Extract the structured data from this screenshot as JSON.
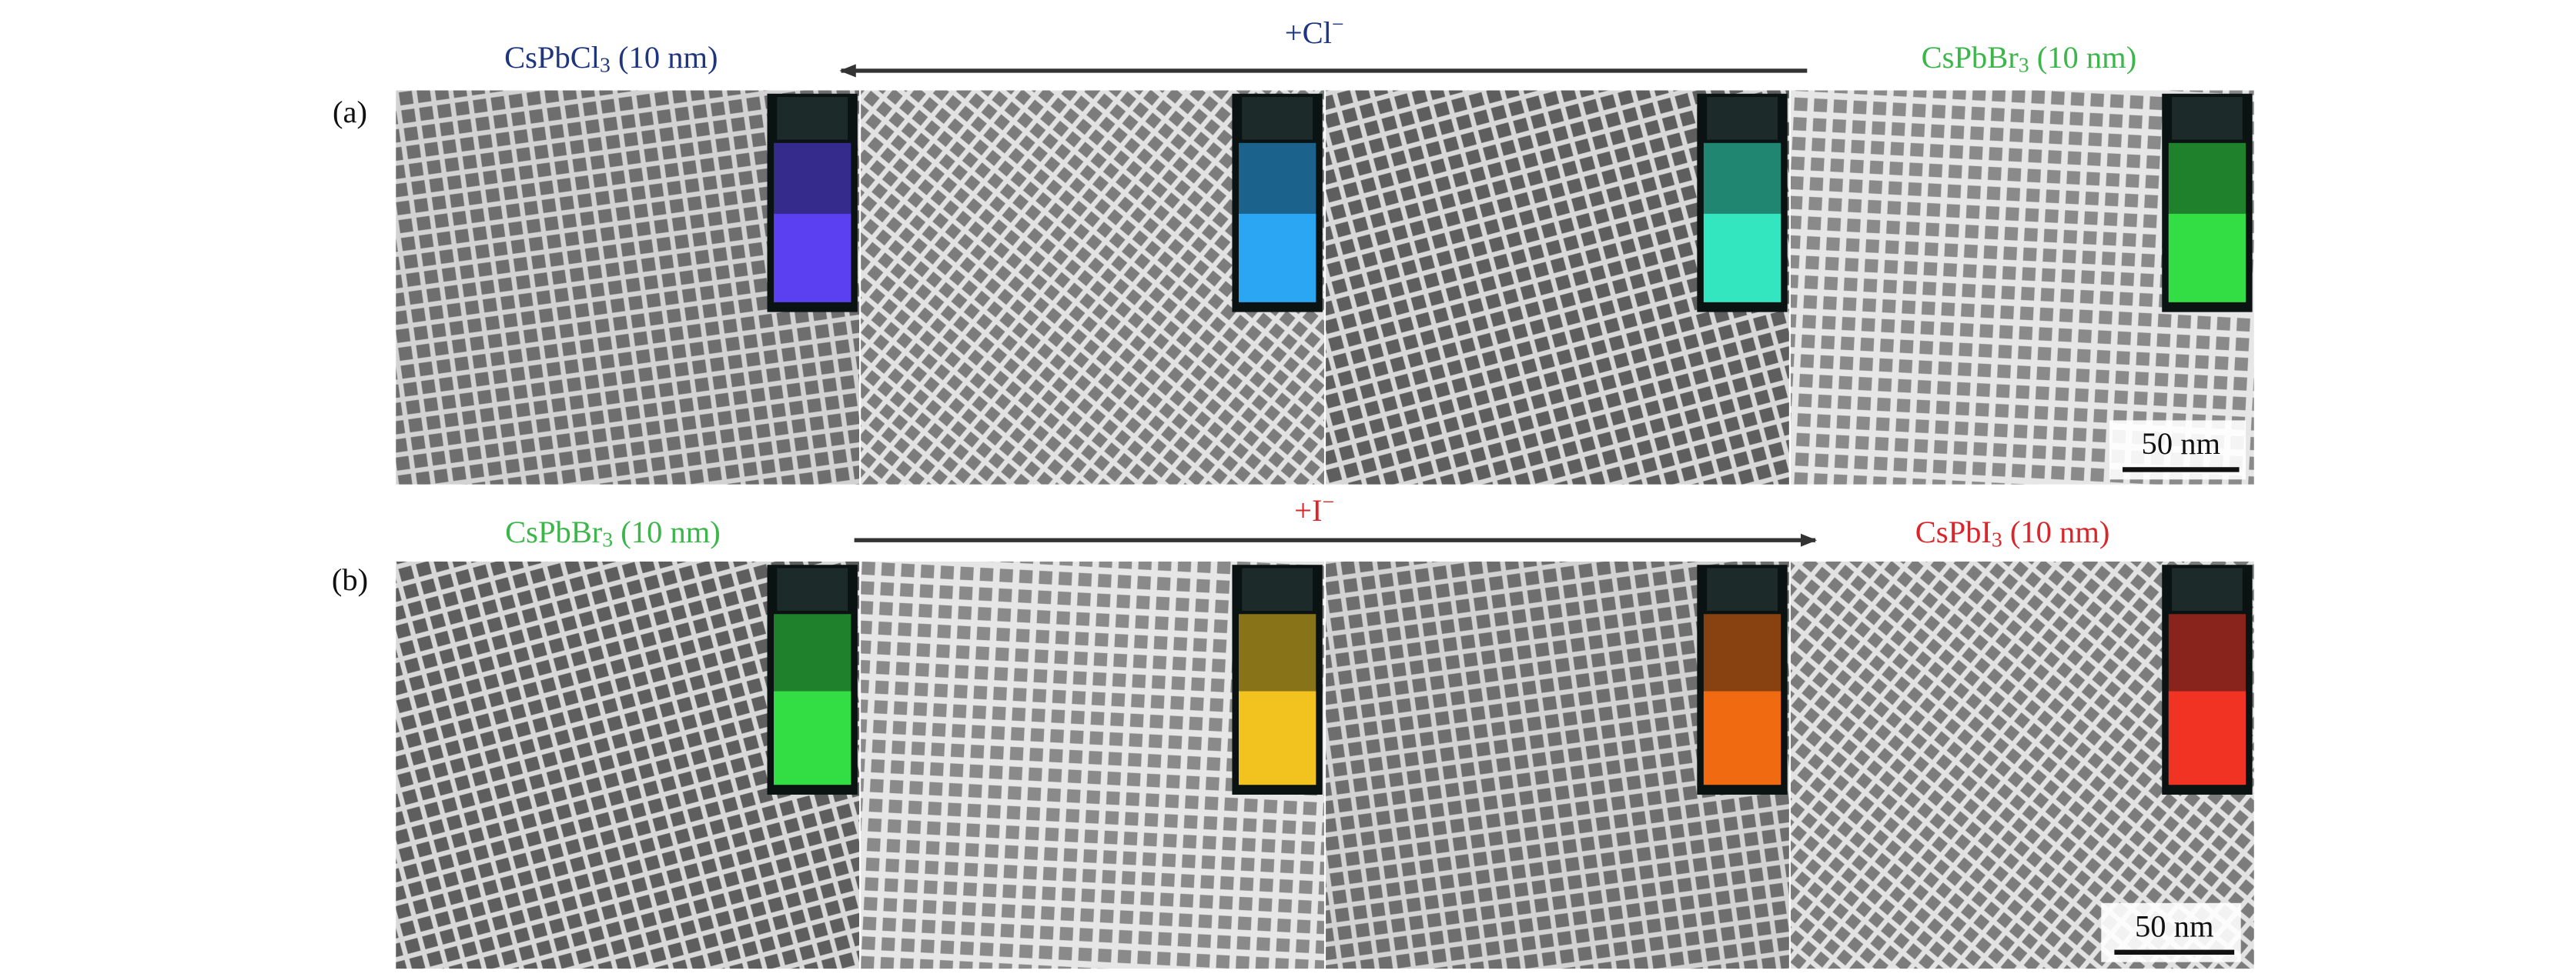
{
  "panels": [
    {
      "label": "(a)",
      "start": {
        "formula": "CsPbCl",
        "sub": "3",
        "size": " (10 nm)"
      },
      "ion": {
        "text": "+Cl",
        "sup": "−"
      },
      "end": {
        "formula": "CsPbBr",
        "sub": "3",
        "size": " (10 nm)"
      },
      "scale_bar": "50 nm"
    },
    {
      "label": "(b)",
      "start": {
        "formula": "CsPbBr",
        "sub": "3",
        "size": " (10 nm)"
      },
      "ion": {
        "text": "+I",
        "sup": "−"
      },
      "end": {
        "formula": "CsPbI",
        "sub": "3",
        "size": " (10 nm)"
      },
      "scale_bar": "50 nm"
    }
  ]
}
